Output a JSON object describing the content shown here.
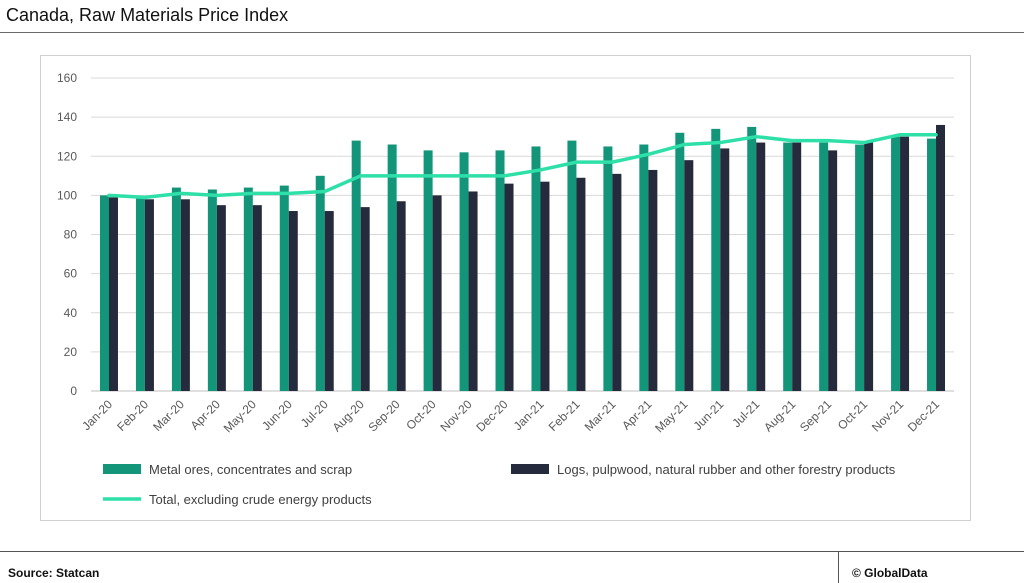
{
  "header": {
    "title": "Canada, Raw Materials Price Index"
  },
  "footer": {
    "source": "Source:  Statcan",
    "copyright": "© GlobalData"
  },
  "colors": {
    "metal": "#13957A",
    "logs": "#262A3D",
    "total": "#2EE0A8",
    "grid": "#d9d9d9",
    "axis_text": "#595959"
  },
  "chart_data": {
    "type": "bar",
    "categories": [
      "Jan-20",
      "Feb-20",
      "Mar-20",
      "Apr-20",
      "May-20",
      "Jun-20",
      "Jul-20",
      "Aug-20",
      "Sep-20",
      "Oct-20",
      "Nov-20",
      "Dec-20",
      "Jan-21",
      "Feb-21",
      "Mar-21",
      "Apr-21",
      "May-21",
      "Jun-21",
      "Jul-21",
      "Aug-21",
      "Sep-21",
      "Oct-21",
      "Nov-21",
      "Dec-21"
    ],
    "ylim": [
      0,
      160
    ],
    "yticks": [
      0,
      20,
      40,
      60,
      80,
      100,
      120,
      140,
      160
    ],
    "grid": true,
    "legend_position": "bottom",
    "series": [
      {
        "name": "Metal ores, concentrates and scrap",
        "kind": "bar",
        "color": "#13957A",
        "values": [
          100,
          99,
          104,
          103,
          104,
          105,
          110,
          128,
          126,
          123,
          122,
          123,
          125,
          128,
          125,
          126,
          132,
          134,
          135,
          127,
          127,
          126,
          130,
          129
        ]
      },
      {
        "name": "Logs, pulpwood, natural rubber and other forestry products",
        "kind": "bar",
        "color": "#262A3D",
        "values": [
          99,
          98,
          98,
          95,
          95,
          92,
          92,
          94,
          97,
          100,
          102,
          106,
          107,
          109,
          111,
          113,
          118,
          124,
          127,
          127,
          123,
          127,
          130,
          136
        ]
      },
      {
        "name": "Total, excluding crude energy products",
        "kind": "line",
        "color": "#2EE0A8",
        "values": [
          100,
          99,
          101,
          100,
          101,
          101,
          102,
          110,
          110,
          110,
          110,
          110,
          113,
          117,
          117,
          121,
          126,
          127,
          130,
          128,
          128,
          127,
          131,
          131
        ]
      }
    ]
  }
}
